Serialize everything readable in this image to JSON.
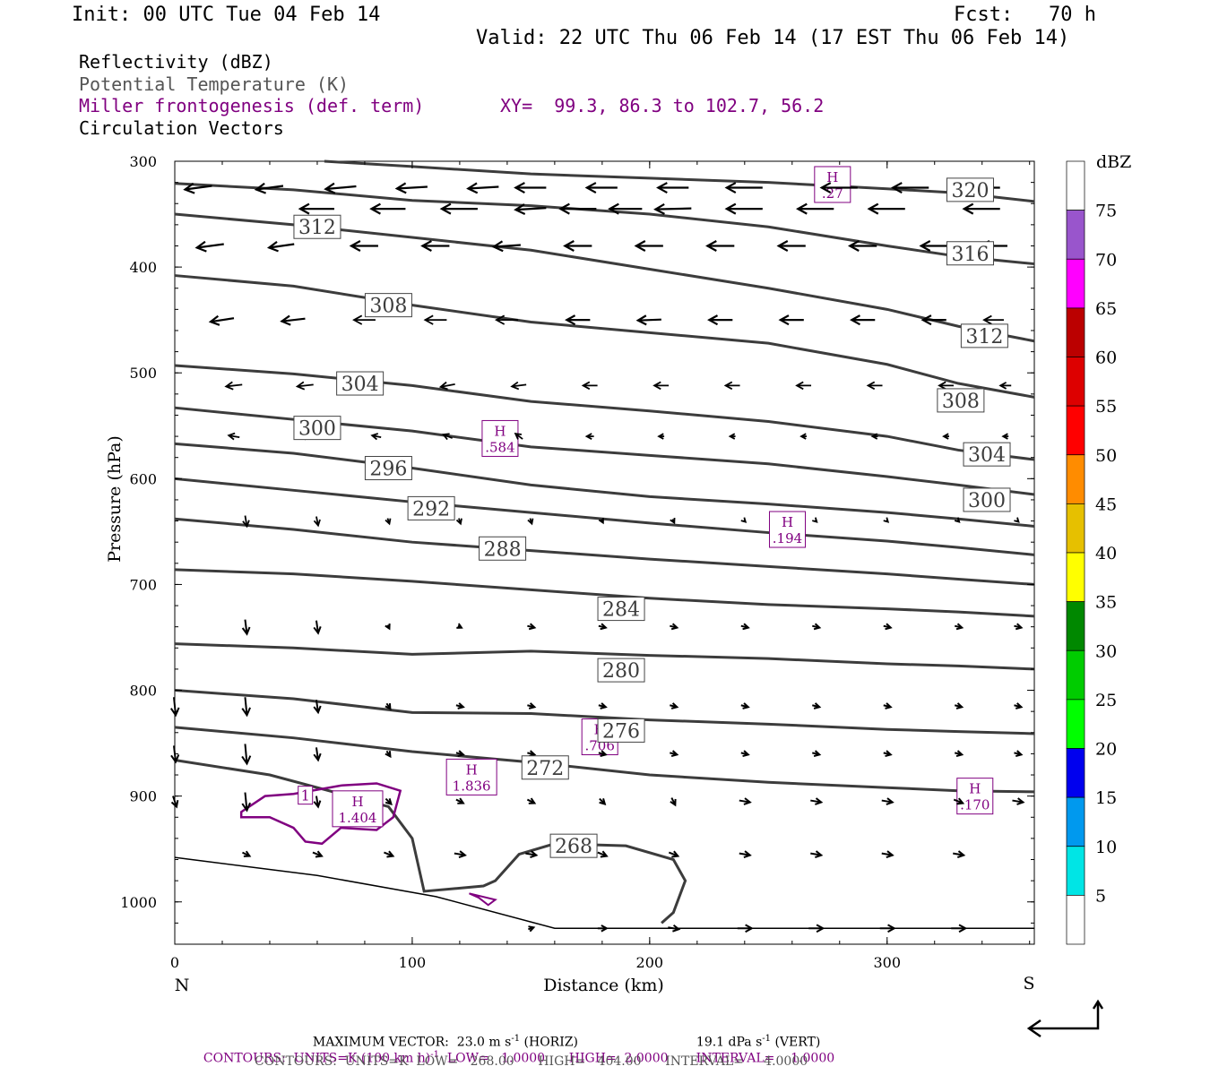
{
  "header": {
    "init": "Init: 00 UTC Tue 04 Feb 14",
    "fcst": "Fcst:   70 h",
    "valid": "Valid: 22 UTC Thu 06 Feb 14 (17 EST Thu 06 Feb 14)"
  },
  "legend": {
    "reflectivity": "Reflectivity (dBZ)",
    "theta": "Potential Temperature (K)",
    "frontogenesis": "Miller frontogenesis (def. term)",
    "xy": "XY=  99.3, 86.3 to 102.7, 56.2",
    "vectors": "Circulation Vectors"
  },
  "footer": {
    "max_vector": "MAXIMUM VECTOR:  23.0 m s",
    "max_vector_unit": "-1",
    "max_vector_tail": " (HORIZ)",
    "vert": "19.1 dPa s",
    "vert_unit": "-1",
    "vert_tail": " (VERT)",
    "contours1": "CONTOURS:  UNITS=K (100 km h)",
    "contours1_unit": "-1",
    "contours1_tail": "  LOW=   1.0000      HIGH=  2.0000       INTERVAL=    1.0000",
    "contours2": "CONTOURS:  UNITS=K  LOW=   268.00      HIGH=   404.00      INTERVAL=     4.0000"
  },
  "colorbar": {
    "title": "dBZ",
    "labels": [
      "5",
      "10",
      "15",
      "20",
      "25",
      "30",
      "35",
      "40",
      "45",
      "50",
      "55",
      "60",
      "65",
      "70",
      "75"
    ],
    "colors": [
      "#ffffff",
      "#00e5e5",
      "#0099ee",
      "#0000ee",
      "#00ff00",
      "#00cc00",
      "#008800",
      "#ffff00",
      "#e6c000",
      "#ff8c00",
      "#ff0000",
      "#dd0000",
      "#bb0000",
      "#ff00ff",
      "#9955cc",
      "#ffffff"
    ]
  },
  "chart_data": {
    "type": "cross-section",
    "xlabel": "Distance (km)",
    "ylabel": "Pressure (hPa)",
    "xlim": [
      0,
      362
    ],
    "ylim": [
      300,
      1040
    ],
    "x_ticks": [
      0,
      100,
      200,
      300
    ],
    "y_ticks": [
      300,
      400,
      500,
      600,
      700,
      800,
      900,
      1000
    ],
    "left_end_label": "N",
    "right_end_label": "S",
    "theta_contours": [
      {
        "label": "320",
        "points": [
          [
            63,
            300
          ],
          [
            100,
            305
          ],
          [
            150,
            312
          ],
          [
            200,
            316
          ],
          [
            250,
            320
          ],
          [
            300,
            326
          ],
          [
            330,
            330
          ],
          [
            362,
            338
          ]
        ]
      },
      {
        "label": "316",
        "points": [
          [
            0,
            321
          ],
          [
            50,
            327
          ],
          [
            100,
            337
          ],
          [
            150,
            342
          ],
          [
            200,
            350
          ],
          [
            250,
            362
          ],
          [
            300,
            380
          ],
          [
            330,
            390
          ],
          [
            362,
            397
          ]
        ]
      },
      {
        "label": "312",
        "points": [
          [
            0,
            350
          ],
          [
            50,
            360
          ],
          [
            100,
            372
          ],
          [
            150,
            384
          ],
          [
            200,
            402
          ],
          [
            250,
            420
          ],
          [
            300,
            440
          ],
          [
            330,
            456
          ],
          [
            362,
            470
          ]
        ]
      },
      {
        "label": "308",
        "points": [
          [
            0,
            408
          ],
          [
            50,
            418
          ],
          [
            100,
            436
          ],
          [
            150,
            452
          ],
          [
            200,
            462
          ],
          [
            250,
            472
          ],
          [
            300,
            492
          ],
          [
            330,
            510
          ],
          [
            362,
            523
          ]
        ]
      },
      {
        "label": "304",
        "points": [
          [
            0,
            493
          ],
          [
            50,
            501
          ],
          [
            100,
            512
          ],
          [
            150,
            527
          ],
          [
            200,
            536
          ],
          [
            250,
            546
          ],
          [
            300,
            560
          ],
          [
            330,
            573
          ],
          [
            362,
            582
          ]
        ]
      },
      {
        "label": "300",
        "points": [
          [
            0,
            533
          ],
          [
            50,
            544
          ],
          [
            100,
            555
          ],
          [
            150,
            570
          ],
          [
            200,
            578
          ],
          [
            250,
            586
          ],
          [
            300,
            598
          ],
          [
            330,
            606
          ],
          [
            362,
            615
          ]
        ]
      },
      {
        "label": "296",
        "points": [
          [
            0,
            567
          ],
          [
            50,
            576
          ],
          [
            100,
            590
          ],
          [
            150,
            606
          ],
          [
            200,
            617
          ],
          [
            250,
            624
          ],
          [
            300,
            632
          ],
          [
            330,
            638
          ],
          [
            362,
            645
          ]
        ]
      },
      {
        "label": "292",
        "points": [
          [
            0,
            600
          ],
          [
            50,
            611
          ],
          [
            100,
            622
          ],
          [
            150,
            632
          ],
          [
            200,
            642
          ],
          [
            250,
            651
          ],
          [
            300,
            659
          ],
          [
            330,
            665
          ],
          [
            362,
            672
          ]
        ]
      },
      {
        "label": "288",
        "points": [
          [
            0,
            638
          ],
          [
            50,
            648
          ],
          [
            100,
            660
          ],
          [
            150,
            668
          ],
          [
            200,
            676
          ],
          [
            250,
            683
          ],
          [
            300,
            690
          ],
          [
            330,
            695
          ],
          [
            362,
            700
          ]
        ]
      },
      {
        "label": "284",
        "points": [
          [
            0,
            686
          ],
          [
            50,
            690
          ],
          [
            100,
            697
          ],
          [
            150,
            705
          ],
          [
            200,
            713
          ],
          [
            250,
            719
          ],
          [
            300,
            723
          ],
          [
            330,
            726
          ],
          [
            362,
            730
          ]
        ]
      },
      {
        "label": "280",
        "points": [
          [
            0,
            756
          ],
          [
            50,
            760
          ],
          [
            100,
            766
          ],
          [
            150,
            763
          ],
          [
            200,
            767
          ],
          [
            250,
            770
          ],
          [
            300,
            775
          ],
          [
            330,
            777
          ],
          [
            362,
            780
          ]
        ]
      },
      {
        "label": "276",
        "points": [
          [
            0,
            800
          ],
          [
            50,
            808
          ],
          [
            100,
            821
          ],
          [
            150,
            822
          ],
          [
            200,
            828
          ],
          [
            250,
            832
          ],
          [
            300,
            837
          ],
          [
            330,
            839
          ],
          [
            362,
            841
          ]
        ]
      },
      {
        "label": "272",
        "points": [
          [
            0,
            835
          ],
          [
            50,
            845
          ],
          [
            100,
            858
          ],
          [
            150,
            868
          ],
          [
            200,
            880
          ],
          [
            250,
            887
          ],
          [
            300,
            892
          ],
          [
            330,
            895
          ],
          [
            362,
            896
          ]
        ]
      },
      {
        "label": "268",
        "points": [
          [
            0,
            866
          ],
          [
            40,
            880
          ],
          [
            90,
            910
          ],
          [
            100,
            940
          ],
          [
            105,
            990
          ],
          [
            130,
            985
          ],
          [
            135,
            980
          ],
          [
            145,
            955
          ],
          [
            160,
            945
          ],
          [
            190,
            947
          ],
          [
            210,
            960
          ],
          [
            215,
            980
          ],
          [
            210,
            1010
          ],
          [
            205,
            1020
          ]
        ]
      }
    ],
    "frontogenesis_maxima": [
      {
        "label": "H",
        "value": ".27",
        "x": 277,
        "p": 322
      },
      {
        "label": "H",
        "value": ".584",
        "x": 137,
        "p": 562
      },
      {
        "label": "H",
        "value": ".194",
        "x": 258,
        "p": 648
      },
      {
        "label": "H",
        "value": ".706",
        "x": 179,
        "p": 844
      },
      {
        "label": "H",
        "value": "1.836",
        "x": 125,
        "p": 882
      },
      {
        "label": "H",
        "value": "1.404",
        "x": 77,
        "p": 912
      },
      {
        "label": "H",
        "value": ".170",
        "x": 337,
        "p": 900
      }
    ],
    "frontogenesis_contour_label": "1",
    "surface": "terrain line from 958 hPa at 0 km to 1025 hPa at 160 km"
  }
}
